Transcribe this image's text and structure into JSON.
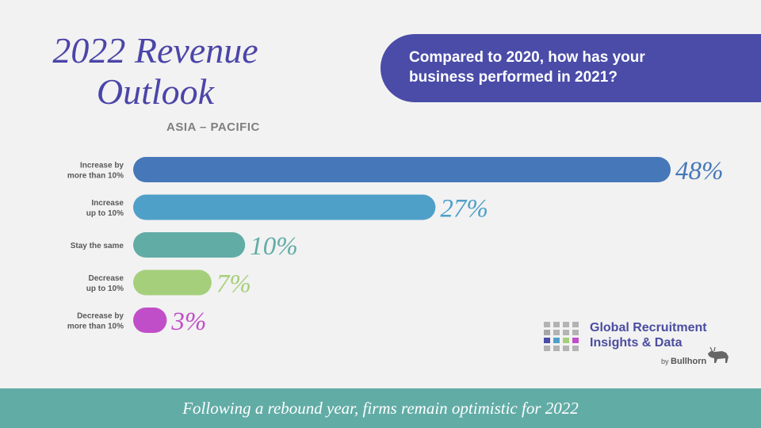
{
  "title": {
    "line1": "2022 Revenue",
    "line2": "Outlook"
  },
  "subtitle": "ASIA – PACIFIC",
  "question": {
    "line1": "Compared to 2020, how has your",
    "line2": "business performed in 2021?"
  },
  "chart_data": {
    "type": "bar",
    "orientation": "horizontal",
    "categories": [
      [
        "Increase by",
        "more than 10%"
      ],
      [
        "Increase",
        "up to 10%"
      ],
      [
        "Stay the same"
      ],
      [
        "Decrease",
        "up to 10%"
      ],
      [
        "Decrease by",
        "more than 10%"
      ]
    ],
    "values": [
      48,
      27,
      10,
      7,
      3
    ],
    "value_labels": [
      "48%",
      "27%",
      "10%",
      "7%",
      "3%"
    ],
    "colors": [
      "#4577b9",
      "#4fa0c9",
      "#62aca6",
      "#a6cf7c",
      "#c14ec9"
    ],
    "xlim": [
      0,
      48
    ],
    "grid": false,
    "legend": "none"
  },
  "footer": "Following a rebound year, firms remain optimistic for 2022",
  "logo": {
    "line1": "Global Recruitment",
    "line2": "Insights & Data",
    "by": "by",
    "brand": "Bullhorn"
  },
  "colors": {
    "title": "#4b45a8",
    "question_bg": "#4a4ca8",
    "footer_bg": "#62aca6",
    "background": "#f2f2f2"
  },
  "icons": {
    "logo_grid": "grid-squares-icon",
    "bull": "bull-icon"
  }
}
